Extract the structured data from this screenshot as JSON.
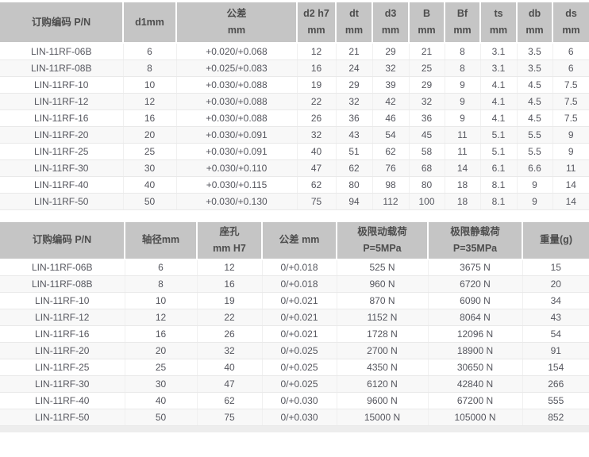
{
  "colors": {
    "header_bg": "#c5c5c5",
    "header_text": "#4d4d4d",
    "body_text": "#55565e",
    "row_stripe": "#f8f8f8",
    "cell_border": "#e9e9e9",
    "page_bottom_strip": "#ededed"
  },
  "chart_data": [
    {
      "type": "table",
      "title": "",
      "columns": [
        [
          "订购编码 P/N"
        ],
        [
          "d1mm"
        ],
        [
          "公差",
          "mm"
        ],
        [
          "d2 h7",
          "mm"
        ],
        [
          "dt",
          "mm"
        ],
        [
          "d3",
          "mm"
        ],
        [
          "B",
          "mm"
        ],
        [
          "Bf",
          "mm"
        ],
        [
          "ts",
          "mm"
        ],
        [
          "db",
          "mm"
        ],
        [
          "ds",
          "mm"
        ]
      ],
      "rows": [
        [
          "LIN-11RF-06B",
          "6",
          "+0.020/+0.068",
          "12",
          "21",
          "29",
          "21",
          "8",
          "3.1",
          "3.5",
          "6"
        ],
        [
          "LIN-11RF-08B",
          "8",
          "+0.025/+0.083",
          "16",
          "24",
          "32",
          "25",
          "8",
          "3.1",
          "3.5",
          "6"
        ],
        [
          "LIN-11RF-10",
          "10",
          "+0.030/+0.088",
          "19",
          "29",
          "39",
          "29",
          "9",
          "4.1",
          "4.5",
          "7.5"
        ],
        [
          "LIN-11RF-12",
          "12",
          "+0.030/+0.088",
          "22",
          "32",
          "42",
          "32",
          "9",
          "4.1",
          "4.5",
          "7.5"
        ],
        [
          "LIN-11RF-16",
          "16",
          "+0.030/+0.088",
          "26",
          "36",
          "46",
          "36",
          "9",
          "4.1",
          "4.5",
          "7.5"
        ],
        [
          "LIN-11RF-20",
          "20",
          "+0.030/+0.091",
          "32",
          "43",
          "54",
          "45",
          "11",
          "5.1",
          "5.5",
          "9"
        ],
        [
          "LIN-11RF-25",
          "25",
          "+0.030/+0.091",
          "40",
          "51",
          "62",
          "58",
          "11",
          "5.1",
          "5.5",
          "9"
        ],
        [
          "LIN-11RF-30",
          "30",
          "+0.030/+0.110",
          "47",
          "62",
          "76",
          "68",
          "14",
          "6.1",
          "6.6",
          "11"
        ],
        [
          "LIN-11RF-40",
          "40",
          "+0.030/+0.115",
          "62",
          "80",
          "98",
          "80",
          "18",
          "8.1",
          "9",
          "14"
        ],
        [
          "LIN-11RF-50",
          "50",
          "+0.030/+0.130",
          "75",
          "94",
          "112",
          "100",
          "18",
          "8.1",
          "9",
          "14"
        ]
      ]
    },
    {
      "type": "table",
      "title": "",
      "columns": [
        [
          "订购编码 P/N"
        ],
        [
          "轴径mm"
        ],
        [
          "座孔",
          "mm H7"
        ],
        [
          "公差 mm"
        ],
        [
          "极限动载荷",
          "P=5MPa"
        ],
        [
          "极限静载荷",
          "P=35MPa"
        ],
        [
          "重量(g)"
        ]
      ],
      "rows": [
        [
          "LIN-11RF-06B",
          "6",
          "12",
          "0/+0.018",
          "525 N",
          "3675 N",
          "15"
        ],
        [
          "LIN-11RF-08B",
          "8",
          "16",
          "0/+0.018",
          "960 N",
          "6720 N",
          "20"
        ],
        [
          "LIN-11RF-10",
          "10",
          "19",
          "0/+0.021",
          "870 N",
          "6090 N",
          "34"
        ],
        [
          "LIN-11RF-12",
          "12",
          "22",
          "0/+0.021",
          "1152 N",
          "8064 N",
          "43"
        ],
        [
          "LIN-11RF-16",
          "16",
          "26",
          "0/+0.021",
          "1728 N",
          "12096 N",
          "54"
        ],
        [
          "LIN-11RF-20",
          "20",
          "32",
          "0/+0.025",
          "2700 N",
          "18900 N",
          "91"
        ],
        [
          "LIN-11RF-25",
          "25",
          "40",
          "0/+0.025",
          "4350 N",
          "30650 N",
          "154"
        ],
        [
          "LIN-11RF-30",
          "30",
          "47",
          "0/+0.025",
          "6120 N",
          "42840 N",
          "266"
        ],
        [
          "LIN-11RF-40",
          "40",
          "62",
          "0/+0.030",
          "9600 N",
          "67200 N",
          "555"
        ],
        [
          "LIN-11RF-50",
          "50",
          "75",
          "0/+0.030",
          "15000 N",
          "105000 N",
          "852"
        ]
      ]
    }
  ]
}
